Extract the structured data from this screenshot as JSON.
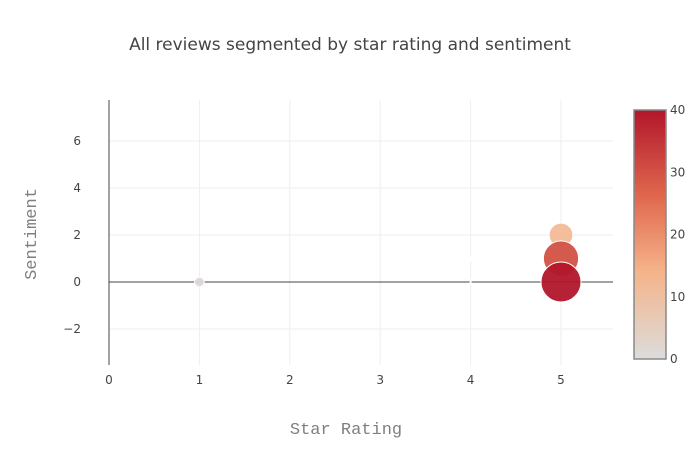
{
  "chart_data": {
    "type": "scatter",
    "title": "All reviews segmented by star rating and sentiment",
    "xlabel": "Star Rating",
    "ylabel": "Sentiment",
    "xlim": [
      -0.2,
      5.58
    ],
    "ylim": [
      -3.5,
      7.7
    ],
    "x_ticks": [
      0,
      1,
      2,
      3,
      4,
      5
    ],
    "y_ticks": [
      -2,
      0,
      2,
      4,
      6
    ],
    "grid": true,
    "marker_size_encodes": "count",
    "colorbar": {
      "min": 0,
      "max": 40,
      "ticks": [
        0,
        10,
        20,
        30,
        40
      ],
      "position": "right"
    },
    "colorscale": [
      "#dcdcdc",
      "#f5b48a",
      "#e0684e",
      "#b2162a"
    ],
    "points": [
      {
        "x": 1,
        "y": 0,
        "count": 1
      },
      {
        "x": 4,
        "y": 0,
        "count": 0
      },
      {
        "x": 4,
        "y": 1,
        "count": 0
      },
      {
        "x": 5,
        "y": 2,
        "count": 12
      },
      {
        "x": 5,
        "y": 1,
        "count": 30
      },
      {
        "x": 5,
        "y": 0,
        "count": 40
      }
    ]
  }
}
